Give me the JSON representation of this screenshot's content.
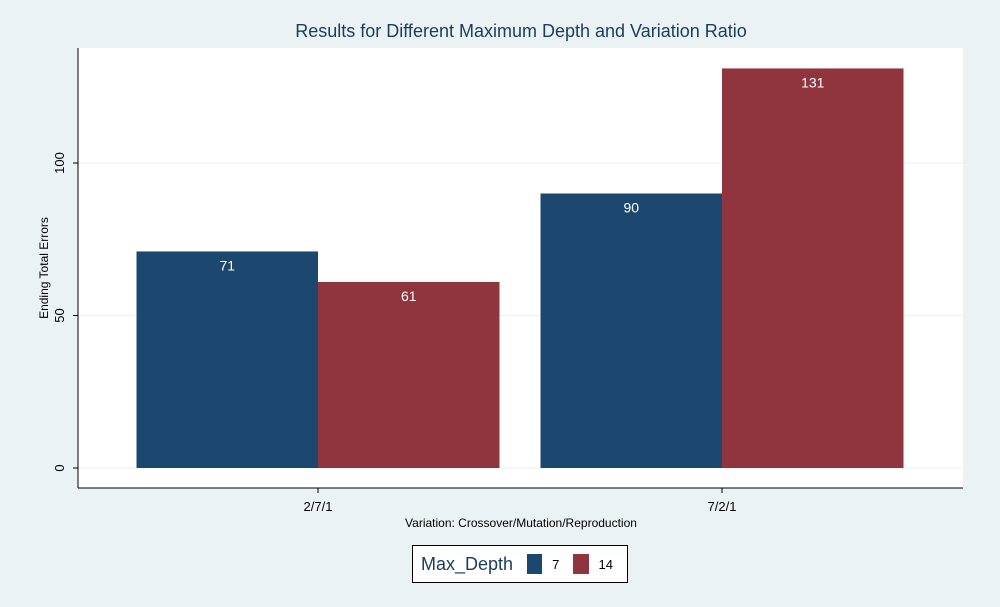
{
  "chart_data": {
    "type": "bar",
    "title": "Results for Different Maximum Depth and Variation Ratio",
    "xlabel": "Variation: Crossover/Mutation/Reproduction",
    "ylabel": "Ending Total Errors",
    "categories": [
      "2/7/1",
      "7/2/1"
    ],
    "series": [
      {
        "name": "7",
        "values": [
          71,
          90
        ],
        "color": "#1c4870"
      },
      {
        "name": "14",
        "values": [
          61,
          131
        ],
        "color": "#90353e"
      }
    ],
    "ylim": [
      0,
      137.5
    ],
    "yticks": [
      "0",
      "50",
      "100"
    ],
    "grid": true,
    "legend": {
      "title": "Max_Depth",
      "position": "bottom"
    },
    "colors": {
      "background": "#eaf2f3",
      "plot_background": "#ffffff",
      "gridline": "#eaf2f3"
    }
  }
}
